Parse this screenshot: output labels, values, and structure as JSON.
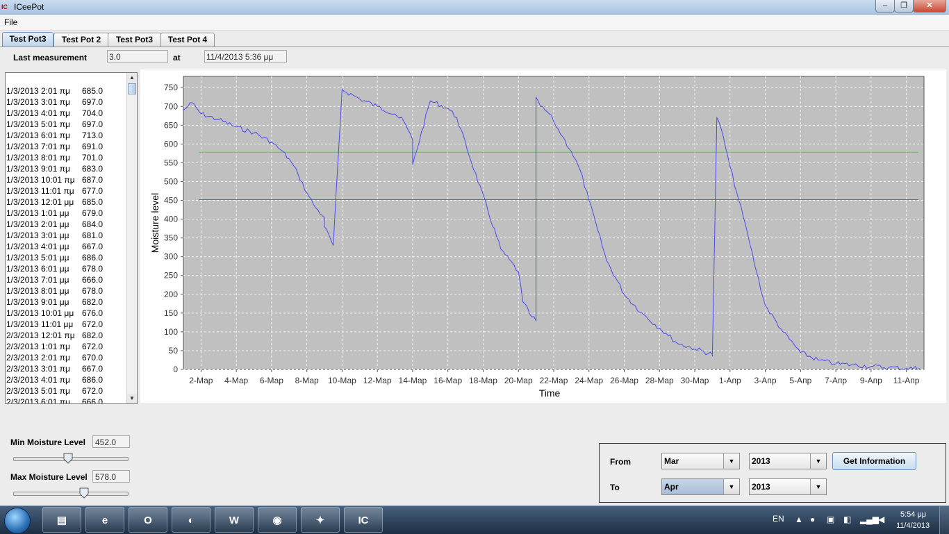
{
  "window": {
    "title": "ICeePot",
    "icon_name": "iceepot-app-icon",
    "min_icon": "minimize-icon",
    "max_icon": "maximize-icon",
    "close_icon": "close-icon"
  },
  "menu": {
    "file": "File"
  },
  "tabs": [
    {
      "label": "Test Pot3",
      "active": true
    },
    {
      "label": "Test Pot 2",
      "active": false
    },
    {
      "label": "Test Pot3",
      "active": false
    },
    {
      "label": "Test Pot 4",
      "active": false
    }
  ],
  "last_measurement": {
    "label": "Last measurement",
    "value": "3.0",
    "at_label": "at",
    "time": "11/4/2013 5:36 μμ"
  },
  "measurements": [
    {
      "date": "1/3/2013 2:01 πμ",
      "value": "685.0"
    },
    {
      "date": "1/3/2013 3:01 πμ",
      "value": "697.0"
    },
    {
      "date": "1/3/2013 4:01 πμ",
      "value": "704.0"
    },
    {
      "date": "1/3/2013 5:01 πμ",
      "value": "697.0"
    },
    {
      "date": "1/3/2013 6:01 πμ",
      "value": "713.0"
    },
    {
      "date": "1/3/2013 7:01 πμ",
      "value": "691.0"
    },
    {
      "date": "1/3/2013 8:01 πμ",
      "value": "701.0"
    },
    {
      "date": "1/3/2013 9:01 πμ",
      "value": "683.0"
    },
    {
      "date": "1/3/2013 10:01 πμ",
      "value": "687.0"
    },
    {
      "date": "1/3/2013 11:01 πμ",
      "value": "677.0"
    },
    {
      "date": "1/3/2013 12:01 μμ",
      "value": "685.0"
    },
    {
      "date": "1/3/2013 1:01 μμ",
      "value": "679.0"
    },
    {
      "date": "1/3/2013 2:01 μμ",
      "value": "684.0"
    },
    {
      "date": "1/3/2013 3:01 μμ",
      "value": "681.0"
    },
    {
      "date": "1/3/2013 4:01 μμ",
      "value": "667.0"
    },
    {
      "date": "1/3/2013 5:01 μμ",
      "value": "686.0"
    },
    {
      "date": "1/3/2013 6:01 μμ",
      "value": "678.0"
    },
    {
      "date": "1/3/2013 7:01 μμ",
      "value": "666.0"
    },
    {
      "date": "1/3/2013 8:01 μμ",
      "value": "678.0"
    },
    {
      "date": "1/3/2013 9:01 μμ",
      "value": "682.0"
    },
    {
      "date": "1/3/2013 10:01 μμ",
      "value": "676.0"
    },
    {
      "date": "1/3/2013 11:01 μμ",
      "value": "672.0"
    },
    {
      "date": "2/3/2013 12:01 πμ",
      "value": "682.0"
    },
    {
      "date": "2/3/2013 1:01 πμ",
      "value": "672.0"
    },
    {
      "date": "2/3/2013 2:01 πμ",
      "value": "670.0"
    },
    {
      "date": "2/3/2013 3:01 πμ",
      "value": "667.0"
    },
    {
      "date": "2/3/2013 4:01 πμ",
      "value": "686.0"
    },
    {
      "date": "2/3/2013 5:01 πμ",
      "value": "672.0"
    },
    {
      "date": "2/3/2013 6:01 πμ",
      "value": "666.0"
    }
  ],
  "chart_data": {
    "type": "line",
    "title": "",
    "xlabel": "Time",
    "ylabel": "Moisture level",
    "x_tick_labels": [
      "2-Мар",
      "4-Мар",
      "6-Мар",
      "8-Мар",
      "10-Мар",
      "12-Мар",
      "14-Мар",
      "16-Мар",
      "18-Мар",
      "20-Мар",
      "22-Мар",
      "24-Мар",
      "26-Мар",
      "28-Мар",
      "30-Мар",
      "1-Апр",
      "3-Апр",
      "5-Апр",
      "7-Апр",
      "9-Апр",
      "11-Апр"
    ],
    "y_ticks": [
      0,
      50,
      100,
      150,
      200,
      250,
      300,
      350,
      400,
      450,
      500,
      550,
      600,
      650,
      700,
      750
    ],
    "xlim": [
      "2013-03-01",
      "2013-04-12"
    ],
    "ylim": [
      0,
      780
    ],
    "grid": true,
    "background": "#c0c0c0",
    "series_color": "#4a4aee",
    "x": [
      "2013-03-01",
      "2013-03-01T12",
      "2013-03-02",
      "2013-03-03",
      "2013-03-04",
      "2013-03-05",
      "2013-03-06",
      "2013-03-06T12",
      "2013-03-07",
      "2013-03-07T12",
      "2013-03-08",
      "2013-03-08T12",
      "2013-03-09",
      "2013-03-09",
      "2013-03-09T12",
      "2013-03-10",
      "2013-03-11",
      "2013-03-12",
      "2013-03-13",
      "2013-03-13T12",
      "2013-03-14",
      "2013-03-14",
      "2013-03-15",
      "2013-03-16",
      "2013-03-16T12",
      "2013-03-19",
      "2013-03-20",
      "2013-03-20T06",
      "2013-03-20T18",
      "2013-03-21",
      "2013-03-21",
      "2013-03-21T06",
      "2013-03-21T18",
      "2013-03-22",
      "2013-03-22T12",
      "2013-03-23",
      "2013-03-23T12",
      "2013-03-24",
      "2013-03-24T12",
      "2013-03-25",
      "2013-03-26",
      "2013-03-27",
      "2013-03-28",
      "2013-03-28T12",
      "2013-03-29",
      "2013-03-30",
      "2013-03-31",
      "2013-03-31",
      "2013-03-31T06",
      "2013-03-31T12",
      "2013-04-01",
      "2013-04-01T12",
      "2013-04-02",
      "2013-04-02T12",
      "2013-04-03",
      "2013-04-04",
      "2013-04-05",
      "2013-04-06",
      "2013-04-07",
      "2013-04-08",
      "2013-04-09",
      "2013-04-10",
      "2013-04-11",
      "2013-04-11T18"
    ],
    "values": [
      690,
      710,
      680,
      665,
      645,
      630,
      605,
      585,
      560,
      520,
      470,
      430,
      405,
      380,
      330,
      745,
      720,
      700,
      680,
      660,
      610,
      545,
      715,
      695,
      670,
      320,
      260,
      180,
      140,
      130,
      725,
      700,
      680,
      660,
      620,
      580,
      530,
      450,
      370,
      290,
      200,
      150,
      110,
      90,
      70,
      55,
      40,
      35,
      670,
      640,
      540,
      450,
      360,
      260,
      170,
      100,
      45,
      25,
      15,
      12,
      8,
      5,
      3,
      3
    ],
    "thresholds": [
      {
        "value": 578,
        "color": "#33dd33"
      },
      {
        "value": 452,
        "color": "#ee3333"
      }
    ]
  },
  "moisture": {
    "min_label": "Min Moisture Level",
    "min_value": "452.0",
    "min_fraction": 0.48,
    "max_label": "Max Moisture Level",
    "max_value": "578.0",
    "max_fraction": 0.62
  },
  "range": {
    "from_label": "From",
    "from_month": "Mar",
    "from_year": "2013",
    "to_label": "To",
    "to_month": "Apr",
    "to_year": "2013",
    "button": "Get Information"
  },
  "taskbar": {
    "apps": [
      {
        "name": "explorer",
        "glyph": "▤"
      },
      {
        "name": "ie",
        "glyph": "e"
      },
      {
        "name": "outlook",
        "glyph": "O"
      },
      {
        "name": "firefox",
        "glyph": "◐"
      },
      {
        "name": "word",
        "glyph": "W"
      },
      {
        "name": "eclipse",
        "glyph": "◉"
      },
      {
        "name": "tool",
        "glyph": "✦"
      },
      {
        "name": "iceepot",
        "glyph": "IC"
      }
    ],
    "lang": "EN",
    "time": "5:54 μμ",
    "date": "11/4/2013"
  }
}
